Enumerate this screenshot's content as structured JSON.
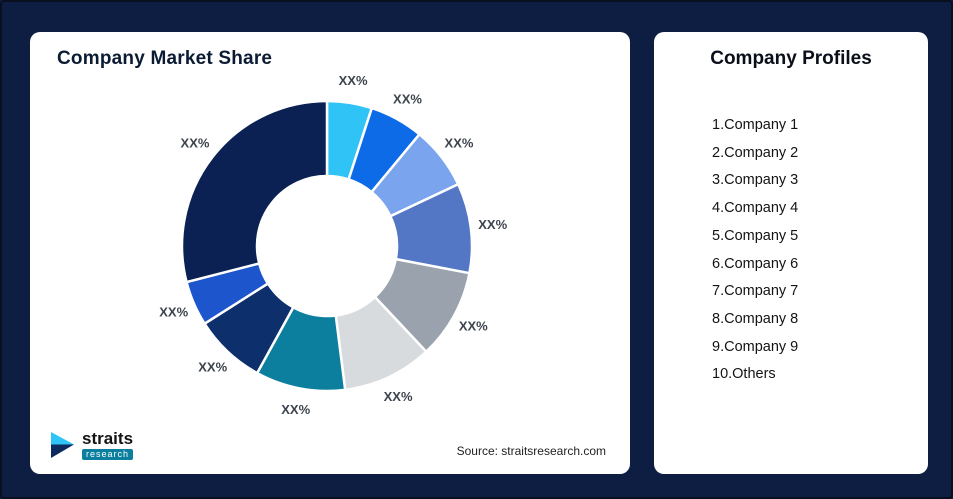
{
  "page": {
    "background_color": "#0e1e42"
  },
  "left_card": {
    "title": "Company Market Share",
    "source": "Source: straitsresearch.com",
    "logo": {
      "name": "straits",
      "sub": "research"
    }
  },
  "right_card": {
    "title": "Company Profiles",
    "items": [
      "1.Company 1",
      "2.Company 2",
      "3.Company 3",
      "4.Company 4",
      "5.Company 5",
      "6.Company 6",
      "7.Company 7",
      "8.Company 8",
      "9.Company 9",
      "10.Others"
    ]
  },
  "chart_data": {
    "type": "pie",
    "donut": true,
    "title": "Company Market Share",
    "labels": [
      "XX%",
      "XX%",
      "XX%",
      "XX%",
      "XX%",
      "XX%",
      "XX%",
      "XX%",
      "XX%",
      "XX%"
    ],
    "values": [
      5,
      6,
      7,
      10,
      10,
      10,
      10,
      8,
      5,
      29
    ],
    "colors": [
      "#2fc4f5",
      "#0d6be8",
      "#7aa4ee",
      "#5377c5",
      "#9aa2ad",
      "#d8dbde",
      "#0c7f9f",
      "#0d2f6b",
      "#1d55cd",
      "#0b2153"
    ],
    "start_angle_deg": 0,
    "direction": "clockwise",
    "legend": "none",
    "label_color": "#3d434d",
    "segment_gap_color": "#ffffff"
  }
}
